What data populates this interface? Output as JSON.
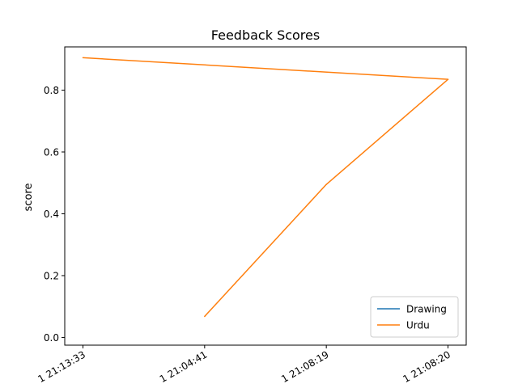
{
  "chart_data": {
    "type": "line",
    "title": "Feedback Scores",
    "xlabel": "",
    "ylabel": "score",
    "categories": [
      "1  21:13:33",
      "1  21:04:41",
      "1  21:08:19",
      "1  21:08:20"
    ],
    "ylim": [
      -0.025,
      0.94
    ],
    "yticks": [
      0.0,
      0.2,
      0.4,
      0.6,
      0.8
    ],
    "ytick_labels": [
      "0.0",
      "0.2",
      "0.4",
      "0.6",
      "0.8"
    ],
    "grid": false,
    "legend_position": "lower right",
    "series": [
      {
        "name": "Drawing",
        "color": "#1f77b4",
        "points": []
      },
      {
        "name": "Urdu",
        "color": "#ff7f0e",
        "points": [
          {
            "x": "1  21:13:33",
            "y": 0.905
          },
          {
            "x": "1  21:08:20",
            "y": 0.835
          },
          {
            "x": "1  21:08:19",
            "y": 0.495
          },
          {
            "x": "1  21:04:41",
            "y": 0.068
          }
        ]
      }
    ]
  }
}
